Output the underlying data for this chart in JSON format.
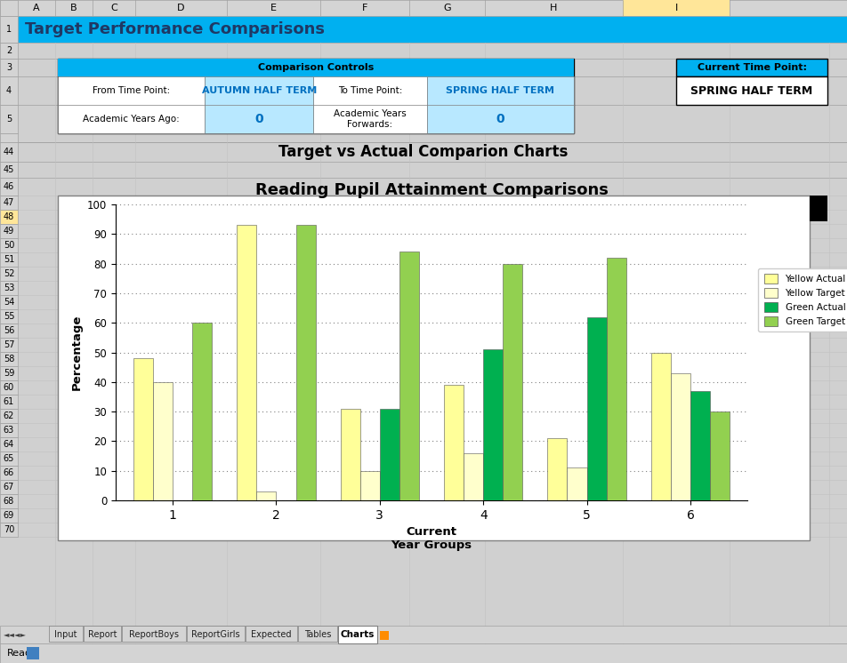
{
  "title_row": "Target Performance Comparisons",
  "title_row_bg": "#00B0F0",
  "title_row_text_color": "#1F3864",
  "comparison_controls_label": "Comparison Controls",
  "from_time_point_label": "From Time Point:",
  "from_time_point_value": "AUTUMN HALF TERM",
  "to_time_point_label": "To Time Point:",
  "to_time_point_value": "SPRING HALF TERM",
  "academic_years_ago_label": "Academic Years Ago:",
  "academic_years_ago_value": "0",
  "academic_years_forwards_label": "Academic Years\nForwards:",
  "academic_years_forwards_value": "0",
  "current_time_point_label": "Current Time Point:",
  "current_time_point_value": "SPRING HALF TERM",
  "section_title": "Target vs Actual Comparion Charts",
  "chart_title": "Reading Pupil Attainment Comparisons",
  "xlabel_line1": "Current",
  "xlabel_line2": "Year Groups",
  "ylabel": "Percentage",
  "x_categories": [
    1,
    2,
    3,
    4,
    5,
    6
  ],
  "yellow_actual": [
    48,
    93,
    31,
    39,
    21,
    50
  ],
  "yellow_target": [
    40,
    3,
    10,
    16,
    11,
    43
  ],
  "green_actual": [
    0,
    0,
    31,
    51,
    62,
    37
  ],
  "green_target": [
    60,
    93,
    84,
    80,
    82,
    30
  ],
  "yellow_actual_color": "#FFFF99",
  "yellow_target_color": "#FFFFCC",
  "green_actual_color": "#00B050",
  "green_target_color": "#92D050",
  "legend_labels": [
    "Yellow Actual",
    "Yellow Target",
    "Green Actual",
    "Green Target"
  ],
  "ylim": [
    0,
    100
  ],
  "yticks": [
    0,
    10,
    20,
    30,
    40,
    50,
    60,
    70,
    80,
    90,
    100
  ],
  "excel_col_header_bg": "#D4D4D4",
  "excel_row_header_bg": "#D4D4D4",
  "excel_bg": "#FFFFFF",
  "grid_line_color": "#C0C0C0",
  "active_tab": "Charts",
  "tab_names": [
    "Input",
    "Report",
    "ReportBoys",
    "ReportGirls",
    "Expected",
    "Tables",
    "Charts"
  ],
  "fig_bg": "#D0D0D0",
  "col_header_letters": [
    "A",
    "B",
    "C",
    "D",
    "E",
    "F",
    "G",
    "H",
    "I"
  ],
  "row_numbers": [
    "1",
    "2",
    "3",
    "4",
    "5",
    "",
    "44",
    "45",
    "46",
    "47",
    "48",
    "49",
    "50",
    "51",
    "52",
    "53",
    "54",
    "55",
    "56",
    "57",
    "58",
    "59",
    "60",
    "61",
    "62",
    "63",
    "64",
    "65",
    "66",
    "67",
    "68",
    "69",
    "70"
  ]
}
